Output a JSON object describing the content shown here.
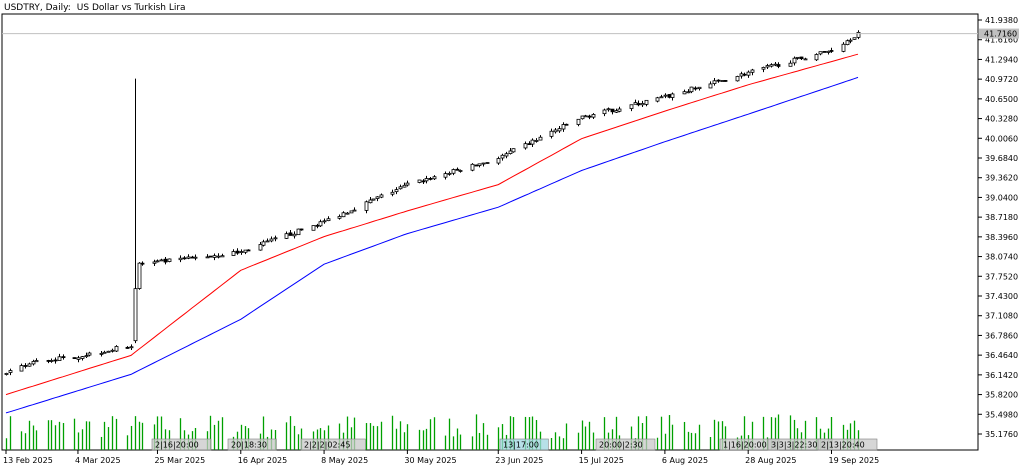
{
  "header": {
    "symbol": "USDTRY, Daily:",
    "description": "US Dollar vs Turkish Lira"
  },
  "price_axis": {
    "labels": [
      "41.9380",
      "41.6160",
      "41.2940",
      "40.9720",
      "40.6500",
      "40.3280",
      "40.0060",
      "39.6840",
      "39.3620",
      "39.0400",
      "38.7180",
      "38.3960",
      "38.0740",
      "37.7520",
      "37.4300",
      "37.1080",
      "36.7860",
      "36.4640",
      "36.1420",
      "35.8200",
      "35.4980",
      "35.1760"
    ],
    "current_price_label": "41.7160"
  },
  "time_axis": {
    "labels": [
      "13 Feb 2025",
      "4 Mar 2025",
      "25 Mar 2025",
      "16 Apr 2025",
      "8 May 2025",
      "30 May 2025",
      "23 Jun 2025",
      "15 Jul 2025",
      "6 Aug 2025",
      "28 Aug 2025",
      "19 Sep 2025"
    ]
  },
  "session_markers": [
    "2|16|20:00",
    "20|18:30",
    "2|2|2|02:45",
    "13|17:00",
    "20:00|2:30",
    "1|16|20:00",
    "3|3|3|22:30",
    "2|13|20:40"
  ],
  "colors": {
    "background": "#ffffff",
    "candles": "#000000",
    "ma_fast": "#ff0000",
    "ma_slow": "#0000ff",
    "volume": "#00a000",
    "grid": "#c0c0c0",
    "price_line": "#c0c0c0",
    "marker_fill": "#c8c8c8",
    "marker_fill_highlight": "#9fd6e0"
  },
  "chart_data": {
    "type": "candlestick",
    "symbol": "USDTRY",
    "timeframe": "Daily",
    "x_start": "13 Feb 2025",
    "x_end": "26 Sep 2025",
    "ylim": [
      35.17,
      41.99
    ],
    "close_anchors": [
      [
        "13 Feb 2025",
        36.15
      ],
      [
        "20 Feb 2025",
        36.35
      ],
      [
        "4 Mar 2025",
        36.45
      ],
      [
        "18 Mar 2025",
        36.62
      ],
      [
        "19 Mar 2025",
        37.95
      ],
      [
        "25 Mar 2025",
        37.98
      ],
      [
        "16 Apr 2025",
        38.15
      ],
      [
        "8 May 2025",
        38.65
      ],
      [
        "30 May 2025",
        39.25
      ],
      [
        "23 Jun 2025",
        39.68
      ],
      [
        "15 Jul 2025",
        40.35
      ],
      [
        "6 Aug 2025",
        40.68
      ],
      [
        "28 Aug 2025",
        41.08
      ],
      [
        "19 Sep 2025",
        41.45
      ],
      [
        "26 Sep 2025",
        41.72
      ]
    ],
    "spike_high": {
      "date": "19 Mar 2025",
      "value": 40.98
    },
    "ma_fast_anchors": [
      [
        "13 Feb 2025",
        35.82
      ],
      [
        "18 Mar 2025",
        36.46
      ],
      [
        "16 Apr 2025",
        37.85
      ],
      [
        "8 May 2025",
        38.4
      ],
      [
        "30 May 2025",
        38.82
      ],
      [
        "23 Jun 2025",
        39.25
      ],
      [
        "15 Jul 2025",
        40.0
      ],
      [
        "6 Aug 2025",
        40.45
      ],
      [
        "28 Aug 2025",
        40.88
      ],
      [
        "26 Sep 2025",
        41.38
      ]
    ],
    "ma_slow_anchors": [
      [
        "13 Feb 2025",
        35.52
      ],
      [
        "18 Mar 2025",
        36.15
      ],
      [
        "16 Apr 2025",
        37.05
      ],
      [
        "8 May 2025",
        37.95
      ],
      [
        "30 May 2025",
        38.45
      ],
      [
        "23 Jun 2025",
        38.88
      ],
      [
        "15 Jul 2025",
        39.48
      ],
      [
        "6 Aug 2025",
        39.95
      ],
      [
        "28 Aug 2025",
        40.4
      ],
      [
        "26 Sep 2025",
        41.0
      ]
    ],
    "volume_range": [
      0.28,
      0.85
    ]
  }
}
